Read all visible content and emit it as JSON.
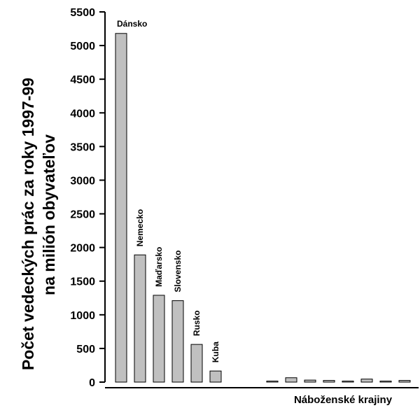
{
  "chart_data": {
    "type": "bar",
    "ylabel_lines": [
      "Počet vedeckých prác za roky 1997-99",
      "na milión obyvateľov"
    ],
    "xlabel": "Náboženské krajiny",
    "ylim": [
      0,
      5500
    ],
    "yticks": [
      0,
      500,
      1000,
      1500,
      2000,
      2500,
      3000,
      3500,
      4000,
      4500,
      5000,
      5500
    ],
    "grid": false,
    "bar_color": "#c0c0c0",
    "bars": [
      {
        "label": "Dánsko",
        "value": 5180,
        "slot": 0
      },
      {
        "label": "Nemecko",
        "value": 1890,
        "slot": 1
      },
      {
        "label": "Maďarsko",
        "value": 1290,
        "slot": 2
      },
      {
        "label": "Slovensko",
        "value": 1210,
        "slot": 3
      },
      {
        "label": "Rusko",
        "value": 560,
        "slot": 4
      },
      {
        "label": "Kuba",
        "value": 165,
        "slot": 5
      },
      {
        "label": "",
        "value": 15,
        "slot": 8
      },
      {
        "label": "",
        "value": 65,
        "slot": 9
      },
      {
        "label": "",
        "value": 30,
        "slot": 10
      },
      {
        "label": "",
        "value": 25,
        "slot": 11
      },
      {
        "label": "",
        "value": 15,
        "slot": 12
      },
      {
        "label": "",
        "value": 45,
        "slot": 13
      },
      {
        "label": "",
        "value": 5,
        "slot": 14
      },
      {
        "label": "",
        "value": 25,
        "slot": 15
      }
    ]
  }
}
